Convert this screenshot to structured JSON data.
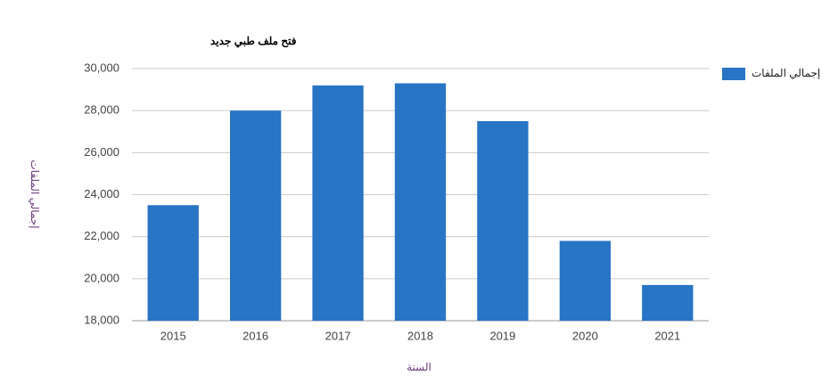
{
  "chart_data": {
    "type": "bar",
    "title": "فتح ملف طبي جديد",
    "x_label": "السنة",
    "y_label": "إجمالي الملفات",
    "categories": [
      "2015",
      "2016",
      "2017",
      "2018",
      "2019",
      "2020",
      "2021"
    ],
    "series": [
      {
        "name": "إجمالي الملفات",
        "color": "#2874c5",
        "values": [
          23500,
          28000,
          29200,
          29300,
          27500,
          21800,
          19700
        ]
      }
    ],
    "ylim": [
      18000,
      30000
    ],
    "yticks": [
      {
        "value": 18000,
        "label": "18,000"
      },
      {
        "value": 20000,
        "label": "20,000"
      },
      {
        "value": 22000,
        "label": "22,000"
      },
      {
        "value": 24000,
        "label": "24,000"
      },
      {
        "value": 26000,
        "label": "26,000"
      },
      {
        "value": 28000,
        "label": "28,000"
      },
      {
        "value": 30000,
        "label": "30,000"
      }
    ],
    "grid": true,
    "legend": "right"
  }
}
